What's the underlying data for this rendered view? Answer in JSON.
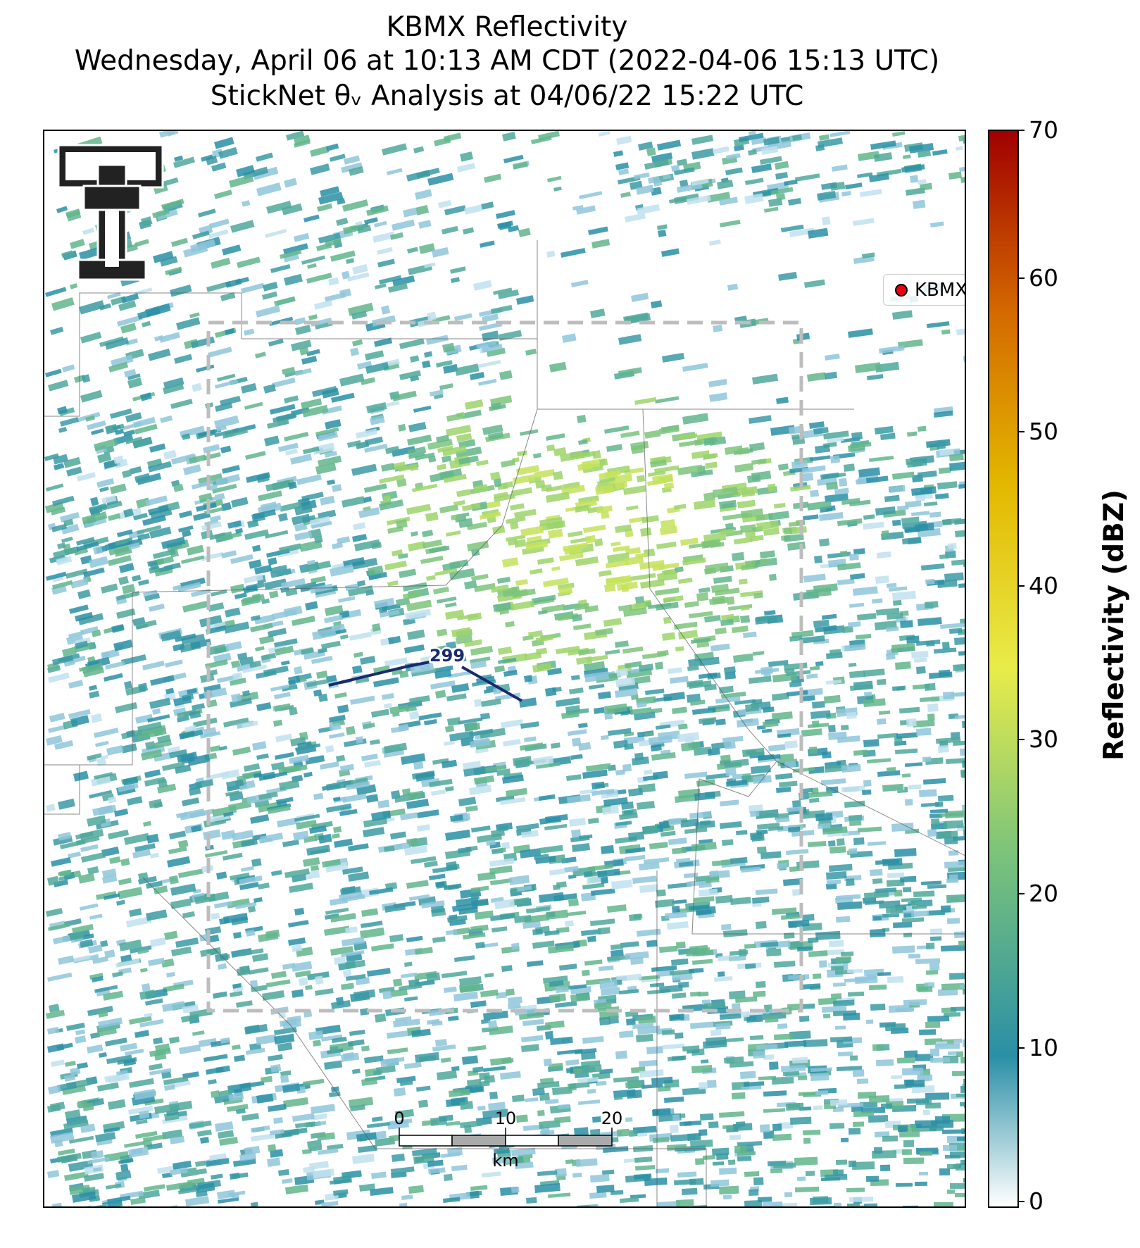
{
  "title": {
    "line1": "KBMX Reflectivity",
    "line2": "Wednesday, April 06 at 10:13 AM CDT (2022-04-06 15:13 UTC)",
    "line3": "StickNet θᵥ Analysis at 04/06/22 15:22 UTC"
  },
  "legend": {
    "label": "KBMX",
    "marker_color": "#e8000b"
  },
  "contour": {
    "label": "299",
    "color": "#1a2a6c"
  },
  "colorbar": {
    "label": "Reflectivity (dBZ)",
    "min": 0,
    "max": 70,
    "ticks": [
      "0",
      "10",
      "20",
      "30",
      "40",
      "50",
      "60",
      "70"
    ],
    "colors": [
      "#ffffff",
      "#2a8fa6",
      "#7cc47a",
      "#e8ec4a",
      "#e3b800",
      "#d46a00",
      "#a00000"
    ]
  },
  "scale_bar": {
    "labels": [
      "0",
      "10",
      "20"
    ],
    "unit": "km"
  },
  "logo": {
    "text": "T"
  }
}
